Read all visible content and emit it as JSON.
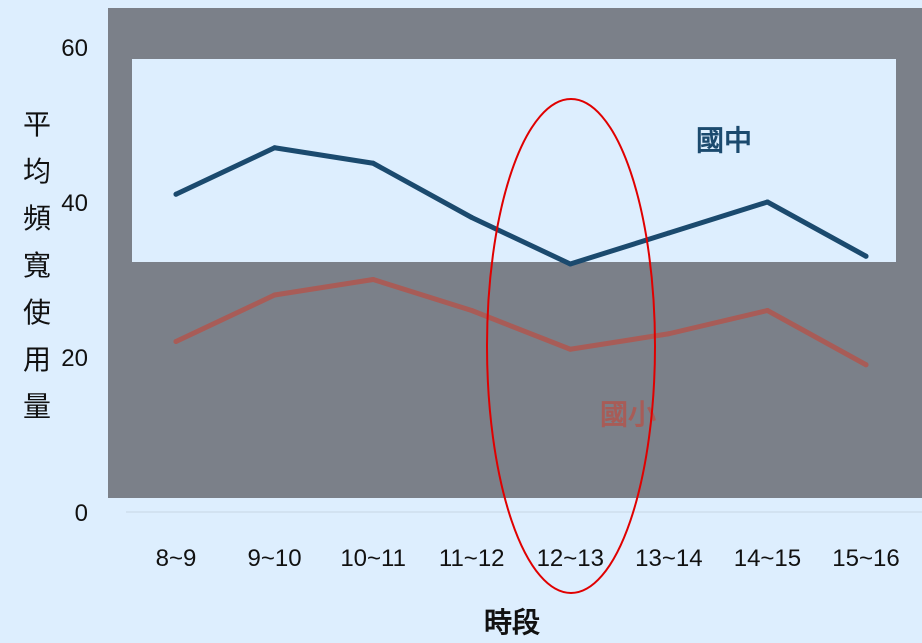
{
  "colors": {
    "page_background": "#ddeefe",
    "overlay_frame": "#7b8089",
    "series_middle": "#1b4a6e",
    "series_elementary": "#a85c57",
    "highlight_ellipse": "#e00000"
  },
  "chart_data": {
    "type": "line",
    "categories": [
      "8~9",
      "9~10",
      "10~11",
      "11~12",
      "12~13",
      "13~14",
      "14~15",
      "15~16"
    ],
    "series": [
      {
        "name": "國中",
        "values": [
          41,
          47,
          45,
          38,
          32,
          36,
          40,
          33
        ]
      },
      {
        "name": "國小",
        "values": [
          22,
          28,
          30,
          26,
          21,
          23,
          26,
          19
        ]
      }
    ],
    "ylim": [
      0,
      60
    ],
    "yticks": [
      "0",
      "20",
      "40",
      "60"
    ],
    "ylabel": "平均頻寬使用量",
    "xlabel": "時段",
    "highlight_category": "12~13",
    "grid": false,
    "legend": "inline labels"
  }
}
